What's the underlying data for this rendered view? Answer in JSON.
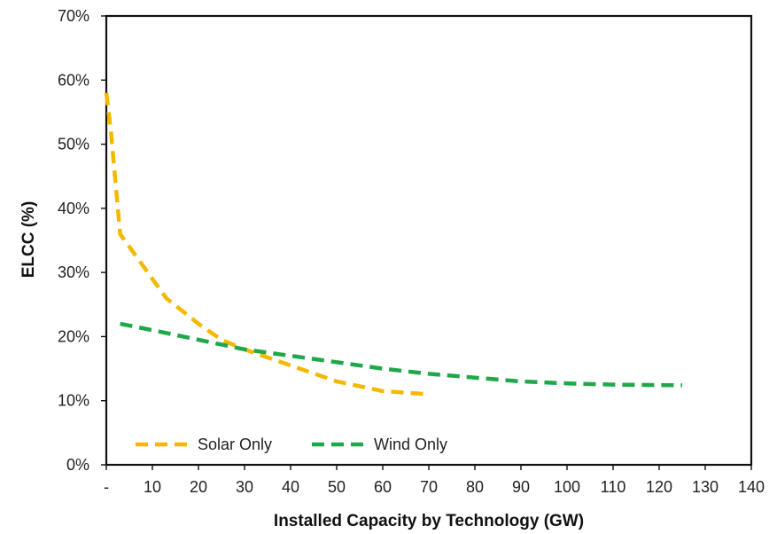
{
  "chart_data": {
    "type": "line",
    "title": "",
    "xlabel": "Installed Capacity by Technology (GW)",
    "ylabel": "ELCC (%)",
    "xlim": [
      0,
      140
    ],
    "ylim": [
      0,
      70
    ],
    "x_ticks": [
      "-",
      "10",
      "20",
      "30",
      "40",
      "50",
      "60",
      "70",
      "80",
      "90",
      "100",
      "110",
      "120",
      "130",
      "140"
    ],
    "y_ticks": [
      "0%",
      "10%",
      "20%",
      "30%",
      "40%",
      "50%",
      "60%",
      "70%"
    ],
    "grid": false,
    "legend_position": "bottom-left",
    "series": [
      {
        "name": "Solar Only",
        "color": "#F5B800",
        "style": "dashed",
        "points": [
          [
            0,
            58
          ],
          [
            1,
            52
          ],
          [
            3,
            36
          ],
          [
            5,
            34
          ],
          [
            10,
            29
          ],
          [
            13,
            26
          ],
          [
            20,
            22
          ],
          [
            25,
            19.5
          ],
          [
            30,
            18
          ],
          [
            40,
            15.5
          ],
          [
            50,
            13
          ],
          [
            60,
            11.5
          ],
          [
            70,
            11
          ]
        ]
      },
      {
        "name": "Wind Only",
        "color": "#1EA84A",
        "style": "dashed",
        "points": [
          [
            3,
            22
          ],
          [
            10,
            21
          ],
          [
            20,
            19.5
          ],
          [
            30,
            18
          ],
          [
            40,
            17
          ],
          [
            50,
            16
          ],
          [
            60,
            15
          ],
          [
            70,
            14.2
          ],
          [
            80,
            13.6
          ],
          [
            90,
            13
          ],
          [
            100,
            12.7
          ],
          [
            110,
            12.5
          ],
          [
            125,
            12.4
          ]
        ]
      }
    ]
  }
}
